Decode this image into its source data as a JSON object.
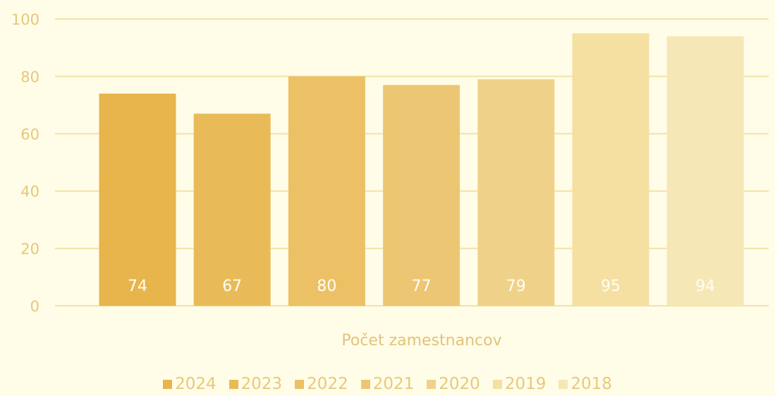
{
  "chart_data": {
    "type": "bar",
    "categories": [
      "2024",
      "2023",
      "2022",
      "2021",
      "2020",
      "2019",
      "2018"
    ],
    "values": [
      74,
      67,
      80,
      77,
      79,
      95,
      94
    ],
    "data_labels": [
      "74",
      "67",
      "80",
      "77",
      "79",
      "95",
      "94"
    ],
    "colors": [
      "#e8b44c",
      "#e9bb58",
      "#ecc064",
      "#edc673",
      "#f0d189",
      "#f5e0a2",
      "#f6e7b6"
    ],
    "xlabel": "Počet zamestnancov",
    "ylabel": "",
    "ylim": [
      0,
      100
    ],
    "yticks": [
      "0",
      "20",
      "40",
      "60",
      "80",
      "100"
    ],
    "grid": true,
    "legend_position": "bottom"
  }
}
